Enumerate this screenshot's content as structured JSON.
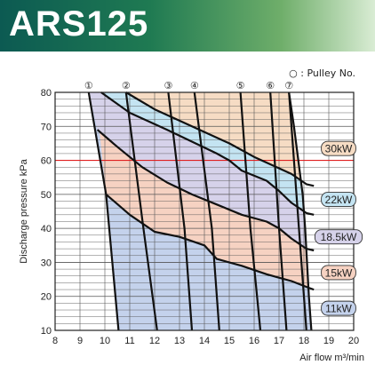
{
  "header": {
    "title": "ARS125",
    "gradient_colors": [
      "#0c5a52",
      "#1f7a52",
      "#6fae6a",
      "#d9ecd4"
    ]
  },
  "chart_data": {
    "type": "area",
    "title": "ARS125",
    "xlabel": "Air flow  m³/min",
    "ylabel": "Discharge pressure kPa",
    "xlim": [
      8,
      20
    ],
    "ylim": [
      10,
      80
    ],
    "xticks": [
      8,
      9,
      10,
      11,
      12,
      13,
      14,
      15,
      16,
      17,
      18,
      19,
      20
    ],
    "yticks": [
      10,
      20,
      30,
      40,
      50,
      60,
      70,
      80
    ],
    "grid": true,
    "reference_line": {
      "y": 60,
      "color": "#e02020"
    },
    "pulley_legend": "○ : Pulley No.",
    "pulleys": [
      {
        "label": "①",
        "points": [
          [
            9.35,
            80
          ],
          [
            10.05,
            50
          ],
          [
            10.55,
            10
          ]
        ]
      },
      {
        "label": "②",
        "points": [
          [
            10.85,
            80
          ],
          [
            11.55,
            40
          ],
          [
            12.1,
            10
          ]
        ]
      },
      {
        "label": "③",
        "points": [
          [
            12.55,
            80
          ],
          [
            13.2,
            40
          ],
          [
            13.5,
            10
          ]
        ]
      },
      {
        "label": "④",
        "points": [
          [
            13.6,
            80
          ],
          [
            14.3,
            40
          ],
          [
            14.6,
            10
          ]
        ]
      },
      {
        "label": "⑤",
        "points": [
          [
            15.45,
            80
          ],
          [
            15.85,
            40
          ],
          [
            16.25,
            10
          ]
        ]
      },
      {
        "label": "⑥",
        "points": [
          [
            16.65,
            80
          ],
          [
            17.0,
            40
          ],
          [
            17.3,
            10
          ]
        ]
      },
      {
        "label": "⑦",
        "points": [
          [
            17.4,
            80
          ],
          [
            17.8,
            40
          ],
          [
            18.1,
            10
          ]
        ]
      }
    ],
    "outer_boundary": [
      [
        9.35,
        80
      ],
      [
        10.05,
        50
      ],
      [
        10.55,
        10
      ],
      [
        18.3,
        10
      ],
      [
        18.2,
        20
      ],
      [
        18.05,
        40
      ],
      [
        17.95,
        50
      ],
      [
        17.6,
        70
      ],
      [
        17.4,
        80
      ]
    ],
    "power_bands": [
      {
        "label": "30kW",
        "color": "#f6dcc4",
        "line": [
          [
            10.85,
            80
          ],
          [
            12.0,
            75
          ],
          [
            13.5,
            70
          ],
          [
            15.0,
            65
          ],
          [
            16.0,
            61
          ],
          [
            16.6,
            59
          ],
          [
            17.5,
            56
          ],
          [
            18.1,
            53
          ],
          [
            18.4,
            52.5
          ]
        ]
      },
      {
        "label": "22kW",
        "color": "#c4e4f2",
        "line": [
          [
            9.85,
            80
          ],
          [
            11.0,
            74
          ],
          [
            12.5,
            69
          ],
          [
            13.5,
            65.5
          ],
          [
            14.5,
            62
          ],
          [
            15.0,
            60
          ],
          [
            15.5,
            57
          ],
          [
            16.5,
            54
          ],
          [
            17.0,
            51
          ],
          [
            17.5,
            47.5
          ],
          [
            18.1,
            44.5
          ],
          [
            18.4,
            44
          ]
        ]
      },
      {
        "label": "18.5kW",
        "color": "#d6d2ea",
        "line": [
          [
            9.7,
            69
          ],
          [
            10.5,
            64
          ],
          [
            11.5,
            58
          ],
          [
            12.5,
            53.5
          ],
          [
            13.5,
            50
          ],
          [
            14.5,
            47
          ],
          [
            15.5,
            44
          ],
          [
            16.5,
            42
          ],
          [
            17.0,
            40
          ],
          [
            17.5,
            37
          ],
          [
            18.1,
            34
          ],
          [
            18.4,
            33.5
          ]
        ]
      },
      {
        "label": "15kW",
        "color": "#f6d2c2",
        "line": [
          [
            10.05,
            50
          ],
          [
            11.0,
            44
          ],
          [
            12.0,
            39
          ],
          [
            13.0,
            37.5
          ],
          [
            14.0,
            35
          ],
          [
            14.5,
            31
          ],
          [
            15.5,
            29
          ],
          [
            16.5,
            26.5
          ],
          [
            17.0,
            25.5
          ],
          [
            17.5,
            24.5
          ],
          [
            18.2,
            22.5
          ],
          [
            18.4,
            22
          ]
        ]
      },
      {
        "label": "11kW",
        "color": "#c4d2ec",
        "line": []
      }
    ]
  }
}
